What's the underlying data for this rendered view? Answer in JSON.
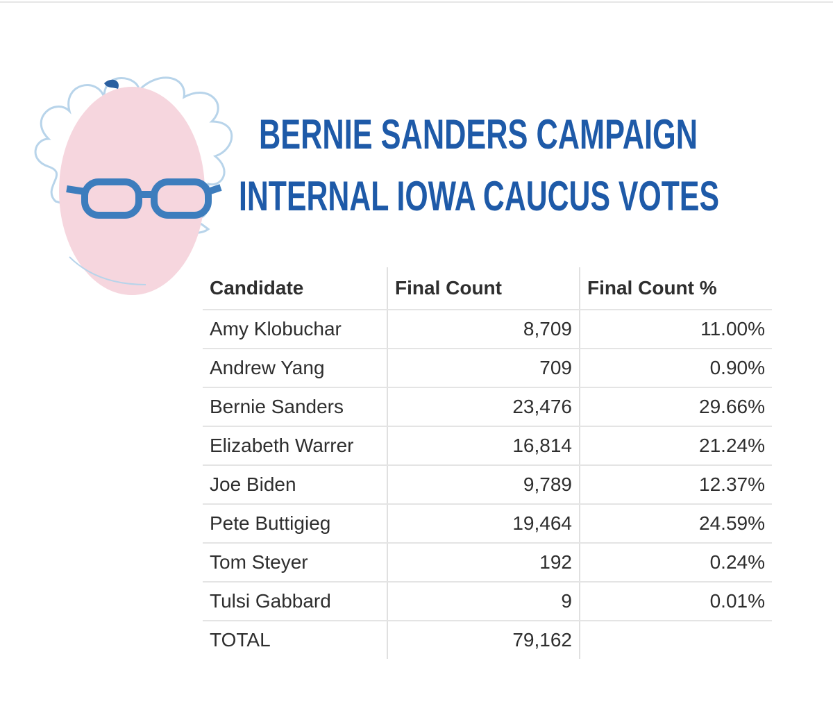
{
  "header": {
    "title_lines": [
      "BERNIE SANDERS CAMPAIGN",
      "INTERNAL IOWA CAUCUS VOTES"
    ]
  },
  "table": {
    "columns": [
      "Candidate",
      "Final Count",
      "Final Count %"
    ],
    "rows": [
      [
        "Amy Klobuchar",
        "8,709",
        "11.00%"
      ],
      [
        "Andrew Yang",
        "709",
        "0.90%"
      ],
      [
        "Bernie Sanders",
        "23,476",
        "29.66%"
      ],
      [
        "Elizabeth Warrer",
        "16,814",
        "21.24%"
      ],
      [
        "Joe Biden",
        "9,789",
        "12.37%"
      ],
      [
        "Pete Buttigieg",
        "19,464",
        "24.59%"
      ],
      [
        "Tom Steyer",
        "192",
        "0.24%"
      ],
      [
        "Tulsi Gabbard",
        "9",
        "0.01%"
      ]
    ],
    "total": [
      "TOTAL",
      "79,162"
    ]
  }
}
